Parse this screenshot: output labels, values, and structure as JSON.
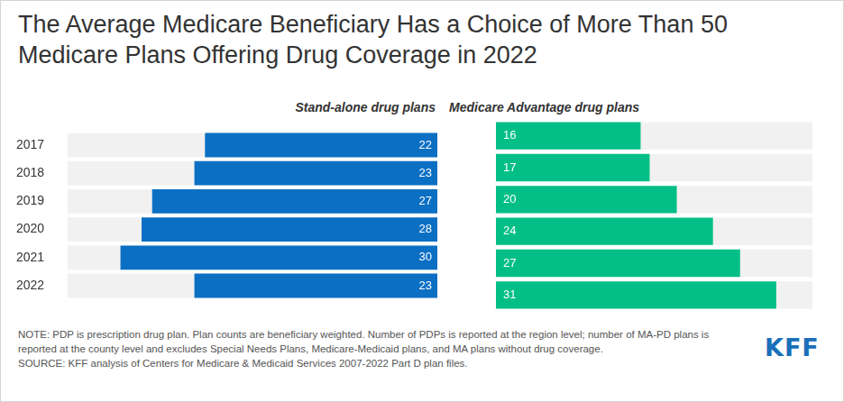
{
  "chart_data": {
    "type": "bar",
    "title": "The Average Medicare Beneficiary Has a Choice of More Than 50 Medicare Plans Offering Drug Coverage in 2022",
    "orientation": "horizontal",
    "categories": [
      "2017",
      "2018",
      "2019",
      "2020",
      "2021",
      "2022"
    ],
    "series": [
      {
        "name": "Stand-alone drug plans",
        "color": "#0b6fc4",
        "values": [
          22,
          23,
          27,
          28,
          30,
          23
        ]
      },
      {
        "name": "Medicare Advantage drug plans",
        "color": "#03bf87",
        "values": [
          16,
          17,
          20,
          24,
          27,
          31
        ]
      }
    ],
    "xlim": [
      0,
      35
    ],
    "grid": false,
    "data_labels": true,
    "tick_labels": "y",
    "note": "NOTE: PDP is prescription drug plan. Plan counts are beneficiary weighted. Number of PDPs is reported at the region level; number of MA-PD plans is reported at the county level and excludes Special Needs Plans, Medicare-Medicaid plans, and MA plans without drug coverage.",
    "source": "SOURCE: KFF analysis of Centers for Medicare & Medicaid Services 2007-2022 Part D plan files.",
    "logo": "KFF"
  }
}
